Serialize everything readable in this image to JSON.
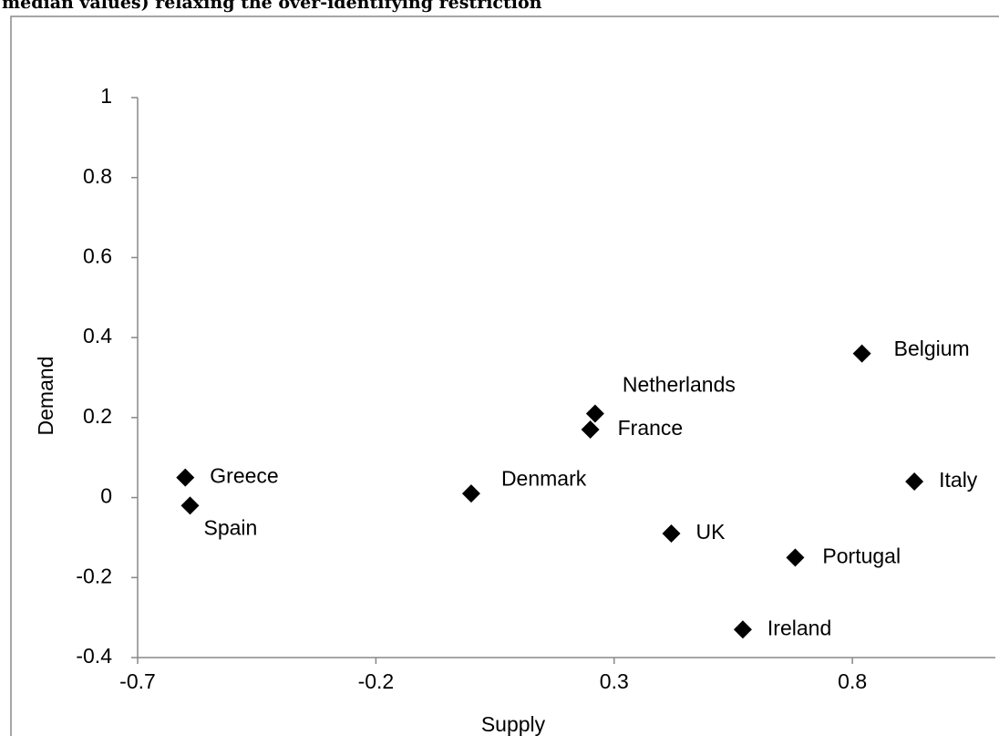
{
  "chart_data": {
    "type": "scatter",
    "title": "median values) relaxing the over-identifying restriction",
    "x_label": "Supply",
    "y_label": "Demand",
    "points": [
      {
        "name": "Greece",
        "x": -0.6,
        "y": 0.05
      },
      {
        "name": "Spain",
        "x": -0.59,
        "y": -0.02
      },
      {
        "name": "Denmark",
        "x": 0.0,
        "y": 0.01
      },
      {
        "name": "Netherlands",
        "x": 0.26,
        "y": 0.21
      },
      {
        "name": "France",
        "x": 0.25,
        "y": 0.17
      },
      {
        "name": "UK",
        "x": 0.42,
        "y": -0.09
      },
      {
        "name": "Ireland",
        "x": 0.57,
        "y": -0.33
      },
      {
        "name": "Portugal",
        "x": 0.68,
        "y": -0.15
      },
      {
        "name": "Belgium",
        "x": 0.82,
        "y": 0.36
      },
      {
        "name": "Italy",
        "x": 0.93,
        "y": 0.04
      }
    ],
    "color": "#000000",
    "xlim": [
      -0.7,
      1.1
    ],
    "xticks": [
      -0.7,
      -0.2,
      0.3,
      0.8
    ],
    "ylim": [
      -0.4,
      1
    ],
    "yticks": [
      -0.4,
      -0.2,
      0,
      0.2,
      0.4,
      0.6,
      0.8,
      1
    ]
  }
}
